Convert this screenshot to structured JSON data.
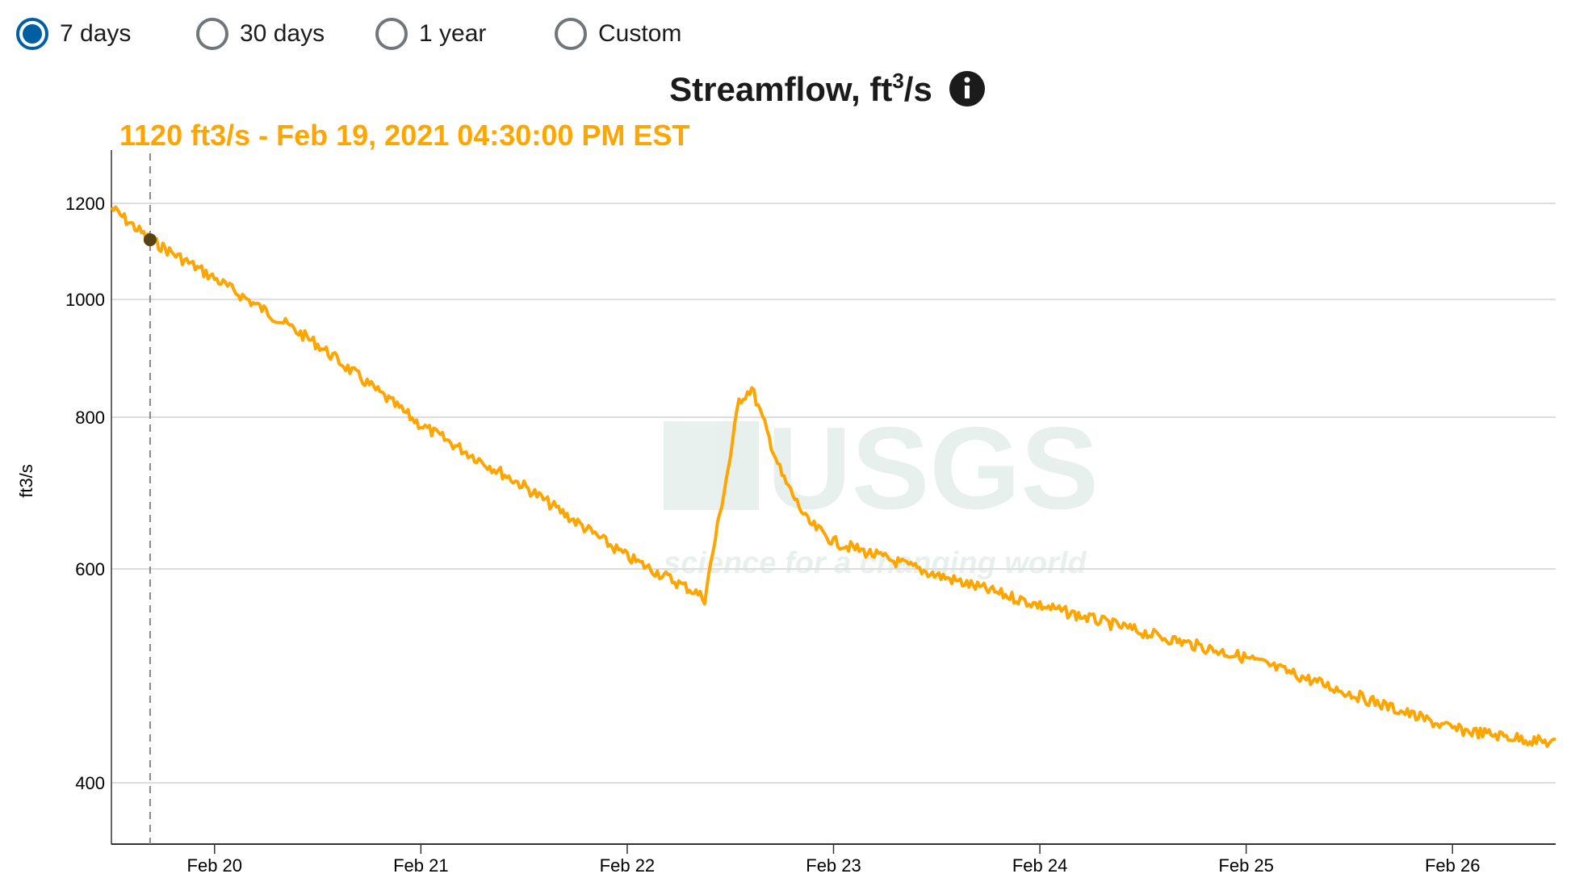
{
  "period_options": [
    {
      "label": "7 days",
      "selected": true
    },
    {
      "label": "30 days",
      "selected": false
    },
    {
      "label": "1 year",
      "selected": false
    },
    {
      "label": "Custom",
      "selected": false
    }
  ],
  "colors": {
    "series": "#ffa500",
    "selected_radio": "#005ea2",
    "watermark": "#e6efec",
    "cursor_point": "#5a4312"
  },
  "info_icon": "info-circle-icon",
  "watermark": {
    "logo": "USGS",
    "tagline": "science for a changing world"
  },
  "chart_data": {
    "type": "line",
    "title": "Streamflow, ft",
    "title_sup": "3",
    "title_suffix": "/s",
    "ylabel": "ft3/s",
    "y_scale": "log",
    "ylim": [
      350,
      1300
    ],
    "yticks": [
      {
        "value": 400,
        "label": "400"
      },
      {
        "value": 600,
        "label": "600"
      },
      {
        "value": 800,
        "label": "800"
      },
      {
        "value": 1000,
        "label": "1000"
      },
      {
        "value": 1200,
        "label": "1200"
      }
    ],
    "xlim": [
      "2021-02-19T12:00",
      "2021-02-26T12:00"
    ],
    "xticks": [
      {
        "value": "2021-02-20T00:00",
        "label": "Feb 20"
      },
      {
        "value": "2021-02-21T00:00",
        "label": "Feb 21"
      },
      {
        "value": "2021-02-22T00:00",
        "label": "Feb 22"
      },
      {
        "value": "2021-02-23T00:00",
        "label": "Feb 23"
      },
      {
        "value": "2021-02-24T00:00",
        "label": "Feb 24"
      },
      {
        "value": "2021-02-25T00:00",
        "label": "Feb 25"
      },
      {
        "value": "2021-02-26T00:00",
        "label": "Feb 26"
      }
    ],
    "grid": true,
    "series": [
      {
        "points": [
          [
            "2021-02-19T12:00",
            1190
          ],
          [
            "2021-02-19T16:30",
            1120
          ],
          [
            "2021-02-20T00:00",
            1041
          ],
          [
            "2021-02-20T12:00",
            918
          ],
          [
            "2021-02-21T00:00",
            788
          ],
          [
            "2021-02-21T12:00",
            702
          ],
          [
            "2021-02-22T00:00",
            614
          ],
          [
            "2021-02-22T08:00",
            574
          ],
          [
            "2021-02-22T09:00",
            567
          ],
          [
            "2021-02-22T10:30",
            650
          ],
          [
            "2021-02-22T12:00",
            743
          ],
          [
            "2021-02-22T13:00",
            826
          ],
          [
            "2021-02-22T14:30",
            845
          ],
          [
            "2021-02-22T16:00",
            788
          ],
          [
            "2021-02-22T18:00",
            716
          ],
          [
            "2021-02-22T21:00",
            656
          ],
          [
            "2021-02-23T00:00",
            632
          ],
          [
            "2021-02-23T12:00",
            593
          ],
          [
            "2021-02-24T00:00",
            560
          ],
          [
            "2021-02-24T12:00",
            532
          ],
          [
            "2021-02-25T00:00",
            507
          ],
          [
            "2021-02-25T12:00",
            474
          ],
          [
            "2021-02-26T00:00",
            443
          ],
          [
            "2021-02-26T12:00",
            431
          ]
        ]
      }
    ],
    "cursor": {
      "time": "2021-02-19T16:30",
      "value": 1120,
      "label": "1120 ft3/s - Feb 19, 2021 04:30:00 PM EST"
    }
  }
}
